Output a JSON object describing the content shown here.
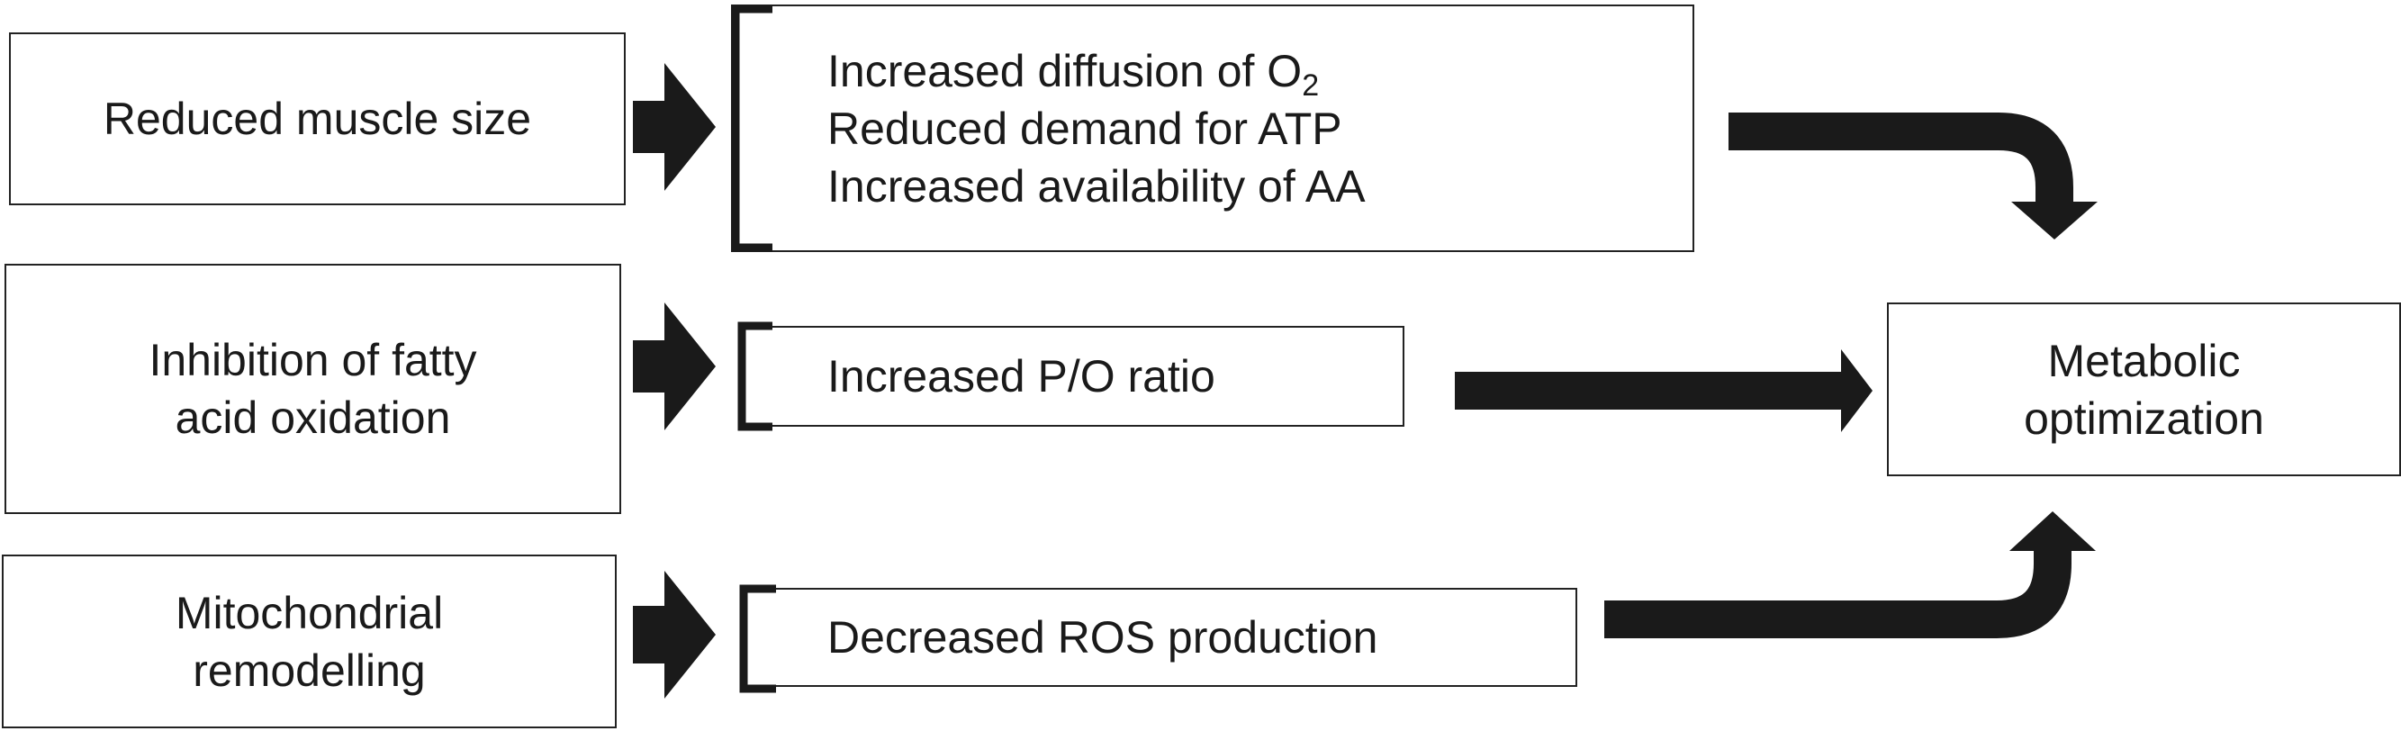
{
  "causes": [
    {
      "lines": [
        "Reduced muscle size"
      ]
    },
    {
      "lines": [
        "Inhibition of fatty",
        "acid oxidation"
      ]
    },
    {
      "lines": [
        "Mitochondrial",
        "remodelling"
      ]
    }
  ],
  "effects": {
    "top": {
      "line1_text": "Increased diffusion of O",
      "line1_sub": "2",
      "line2": "Reduced demand for ATP",
      "line3": "Increased availability of AA"
    },
    "middle": "Increased P/O ratio",
    "bottom": "Decreased ROS production"
  },
  "outcome": {
    "lines": [
      "Metabolic",
      "optimization"
    ]
  },
  "colors": {
    "arrow": "#1a1a1a",
    "border": "#222222",
    "background": "#ffffff"
  },
  "icons": {
    "cause_to_effect_arrows": "block-arrow-right",
    "effect_to_outcome_top": "curved-arrow-down",
    "effect_to_outcome_middle": "arrow-right",
    "effect_to_outcome_bottom": "curved-arrow-up"
  }
}
